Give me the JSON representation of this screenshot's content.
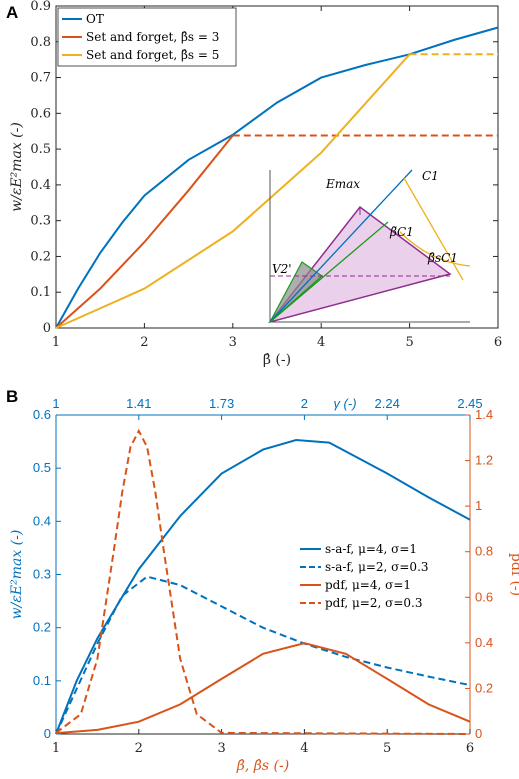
{
  "chart_data": [
    {
      "panel": "A",
      "type": "line",
      "xlabel": "β̂ (-)",
      "ylabel": "w/εE²max (-)",
      "xlim": [
        1,
        6
      ],
      "ylim": [
        0,
        0.9
      ],
      "xticks": [
        "1",
        "2",
        "3",
        "4",
        "5",
        "6"
      ],
      "yticks": [
        "0",
        "0.1",
        "0.2",
        "0.3",
        "0.4",
        "0.5",
        "0.6",
        "0.7",
        "0.8",
        "0.9"
      ],
      "legend_position": "top-left",
      "legend": [
        "OT",
        "Set and forget, β̂s = 3",
        "Set and forget, β̂s = 5"
      ],
      "series": [
        {
          "name": "OT",
          "color": "#0072BD",
          "style": "solid",
          "x": [
            1,
            1.25,
            1.5,
            1.75,
            2,
            2.5,
            3,
            3.5,
            4,
            4.5,
            5,
            5.5,
            6
          ],
          "y": [
            0,
            0.11,
            0.21,
            0.295,
            0.37,
            0.47,
            0.54,
            0.63,
            0.7,
            0.735,
            0.765,
            0.805,
            0.84
          ]
        },
        {
          "name": "Set and forget, β̂s = 3",
          "color": "#D95319",
          "style": "solid",
          "x": [
            1,
            1.5,
            2,
            2.5,
            3
          ],
          "y": [
            0,
            0.11,
            0.24,
            0.385,
            0.538
          ]
        },
        {
          "name": "Set and forget, β̂s = 3 (held)",
          "color": "#D95319",
          "style": "dashed",
          "x": [
            3,
            6
          ],
          "y": [
            0.538,
            0.538
          ]
        },
        {
          "name": "Set and forget, β̂s = 5",
          "color": "#EDB120",
          "style": "solid",
          "x": [
            1,
            2,
            3,
            4,
            5
          ],
          "y": [
            0,
            0.11,
            0.27,
            0.49,
            0.765
          ]
        },
        {
          "name": "Set and forget, β̂s = 5 (held)",
          "color": "#EDB120",
          "style": "dashed",
          "x": [
            5,
            6
          ],
          "y": [
            0.765,
            0.765
          ]
        }
      ],
      "inset_labels": {
        "emax": "Emax",
        "c1": "C1",
        "bc1": "β̃C1",
        "bsc1": "β̂sC1",
        "v2": "V2'"
      }
    },
    {
      "panel": "B",
      "type": "line",
      "xlabel": "β̂, β̂s (-)",
      "ylabel_left": "w/εE²max (-)",
      "ylabel_right": "pdf (-)",
      "top_axis_label": "γ (-)",
      "xlim": [
        1,
        6
      ],
      "ylim_left": [
        0,
        0.6
      ],
      "ylim_right": [
        0,
        1.4
      ],
      "xticks": [
        "1",
        "2",
        "3",
        "4",
        "5",
        "6"
      ],
      "yticks_left": [
        "0",
        "0.1",
        "0.2",
        "0.3",
        "0.4",
        "0.5",
        "0.6"
      ],
      "yticks_right": [
        "0",
        "0.2",
        "0.4",
        "0.6",
        "0.8",
        "1",
        "1.2",
        "1.4"
      ],
      "top_ticks": [
        {
          "x": 1,
          "label": "1"
        },
        {
          "x": 2,
          "label": "1.41"
        },
        {
          "x": 3,
          "label": "1.73"
        },
        {
          "x": 4,
          "label": "2"
        },
        {
          "x": 5,
          "label": "2.24"
        },
        {
          "x": 6,
          "label": "2.45"
        }
      ],
      "legend_position": "right",
      "legend": [
        "s-a-f, μ=4, σ=1",
        "s-a-f, μ=2, σ=0.3",
        "pdf, μ=4, σ=1",
        "pdf, μ=2, σ=0.3"
      ],
      "series": [
        {
          "name": "s-a-f, μ=4, σ=1",
          "axis": "left",
          "color": "#0072BD",
          "style": "solid",
          "x": [
            1,
            1.25,
            1.5,
            2,
            2.5,
            3,
            3.5,
            3.9,
            4.3,
            4.7,
            5,
            5.5,
            6
          ],
          "y": [
            0,
            0.1,
            0.18,
            0.31,
            0.41,
            0.49,
            0.535,
            0.553,
            0.548,
            0.515,
            0.49,
            0.445,
            0.403
          ]
        },
        {
          "name": "s-a-f, μ=2, σ=0.3",
          "axis": "left",
          "color": "#0072BD",
          "style": "dashed",
          "x": [
            1,
            1.5,
            1.8,
            2.1,
            2.5,
            3,
            3.5,
            4,
            4.5,
            5,
            5.5,
            6
          ],
          "y": [
            0,
            0.17,
            0.26,
            0.296,
            0.28,
            0.24,
            0.2,
            0.17,
            0.145,
            0.125,
            0.108,
            0.092
          ]
        },
        {
          "name": "pdf, μ=4, σ=1",
          "axis": "right",
          "color": "#D95319",
          "style": "solid",
          "x": [
            1,
            1.5,
            2,
            2.5,
            3,
            3.5,
            4,
            4.5,
            5,
            5.5,
            6
          ],
          "y": [
            0.004,
            0.018,
            0.054,
            0.13,
            0.242,
            0.352,
            0.399,
            0.352,
            0.242,
            0.13,
            0.054
          ]
        },
        {
          "name": "pdf, μ=2, σ=0.3",
          "axis": "right",
          "color": "#D95319",
          "style": "dashed",
          "x": [
            1,
            1.3,
            1.5,
            1.7,
            1.8,
            1.9,
            2,
            2.1,
            2.2,
            2.3,
            2.5,
            2.7,
            3,
            6
          ],
          "y": [
            0.005,
            0.087,
            0.33,
            0.81,
            1.06,
            1.26,
            1.33,
            1.26,
            1.06,
            0.81,
            0.33,
            0.087,
            0.005,
            0
          ]
        }
      ]
    }
  ]
}
